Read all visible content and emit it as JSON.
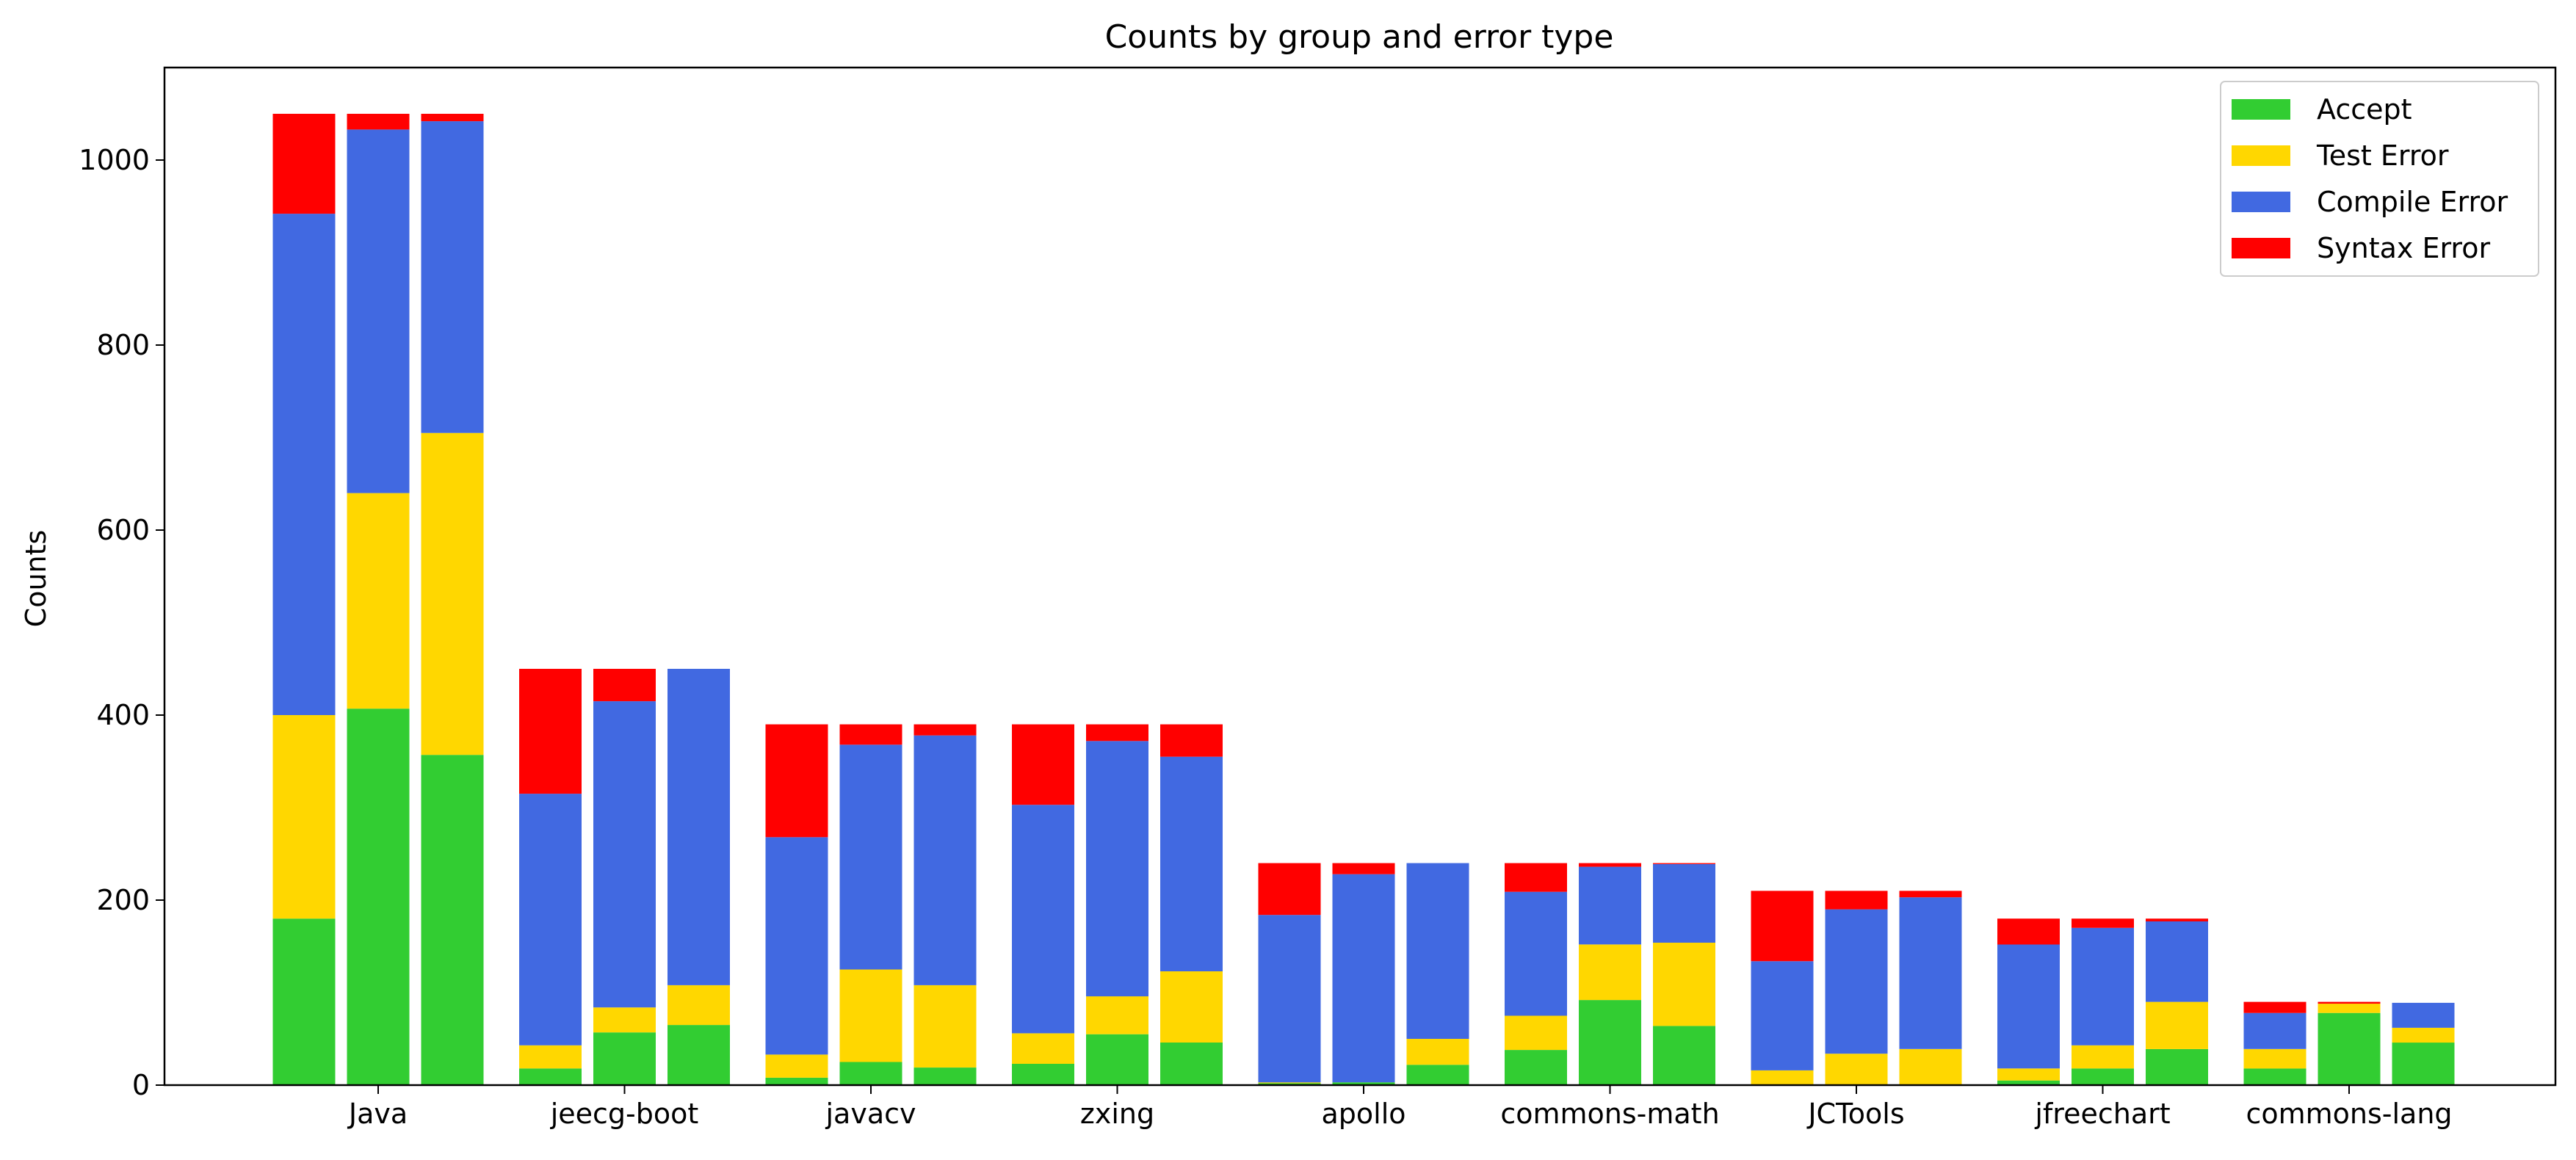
{
  "chart_data": {
    "type": "bar",
    "stacked": true,
    "title": "Counts by group and error type",
    "xlabel": "",
    "ylabel": "Counts",
    "ylim": [
      0,
      1100
    ],
    "yticks": [
      0,
      200,
      400,
      600,
      800,
      1000
    ],
    "grid": false,
    "legend_position": "top-right",
    "bars_per_group": 3,
    "categories": [
      "Java",
      "jeecg-boot",
      "javacv",
      "zxing",
      "apollo",
      "commons-math",
      "JCTools",
      "jfreechart",
      "commons-lang"
    ],
    "series": [
      {
        "name": "Accept",
        "color": "#32CD32",
        "values": [
          [
            180,
            407,
            357
          ],
          [
            18,
            57,
            65
          ],
          [
            8,
            25,
            19
          ],
          [
            23,
            55,
            46
          ],
          [
            2,
            3,
            22
          ],
          [
            38,
            92,
            64
          ],
          [
            0,
            0,
            0
          ],
          [
            5,
            18,
            39
          ],
          [
            18,
            78,
            46
          ]
        ]
      },
      {
        "name": "Test Error",
        "color": "#FFD700",
        "values": [
          [
            220,
            233,
            348
          ],
          [
            25,
            27,
            43
          ],
          [
            25,
            100,
            89
          ],
          [
            33,
            41,
            77
          ],
          [
            1,
            0,
            28
          ],
          [
            37,
            60,
            90
          ],
          [
            16,
            34,
            39
          ],
          [
            13,
            25,
            51
          ],
          [
            21,
            10,
            16
          ]
        ]
      },
      {
        "name": "Compile Error",
        "color": "#4169E1",
        "values": [
          [
            542,
            393,
            337
          ],
          [
            272,
            331,
            342
          ],
          [
            235,
            243,
            270
          ],
          [
            247,
            276,
            232
          ],
          [
            181,
            225,
            190
          ],
          [
            134,
            84,
            85
          ],
          [
            118,
            156,
            164
          ],
          [
            134,
            127,
            87
          ],
          [
            39,
            0,
            27
          ]
        ]
      },
      {
        "name": "Syntax Error",
        "color": "#FF0000",
        "values": [
          [
            108,
            17,
            8
          ],
          [
            135,
            35,
            0
          ],
          [
            122,
            22,
            12
          ],
          [
            87,
            18,
            35
          ],
          [
            56,
            12,
            0
          ],
          [
            31,
            4,
            1
          ],
          [
            76,
            20,
            7
          ],
          [
            28,
            10,
            3
          ],
          [
            12,
            2,
            0
          ]
        ]
      }
    ]
  }
}
